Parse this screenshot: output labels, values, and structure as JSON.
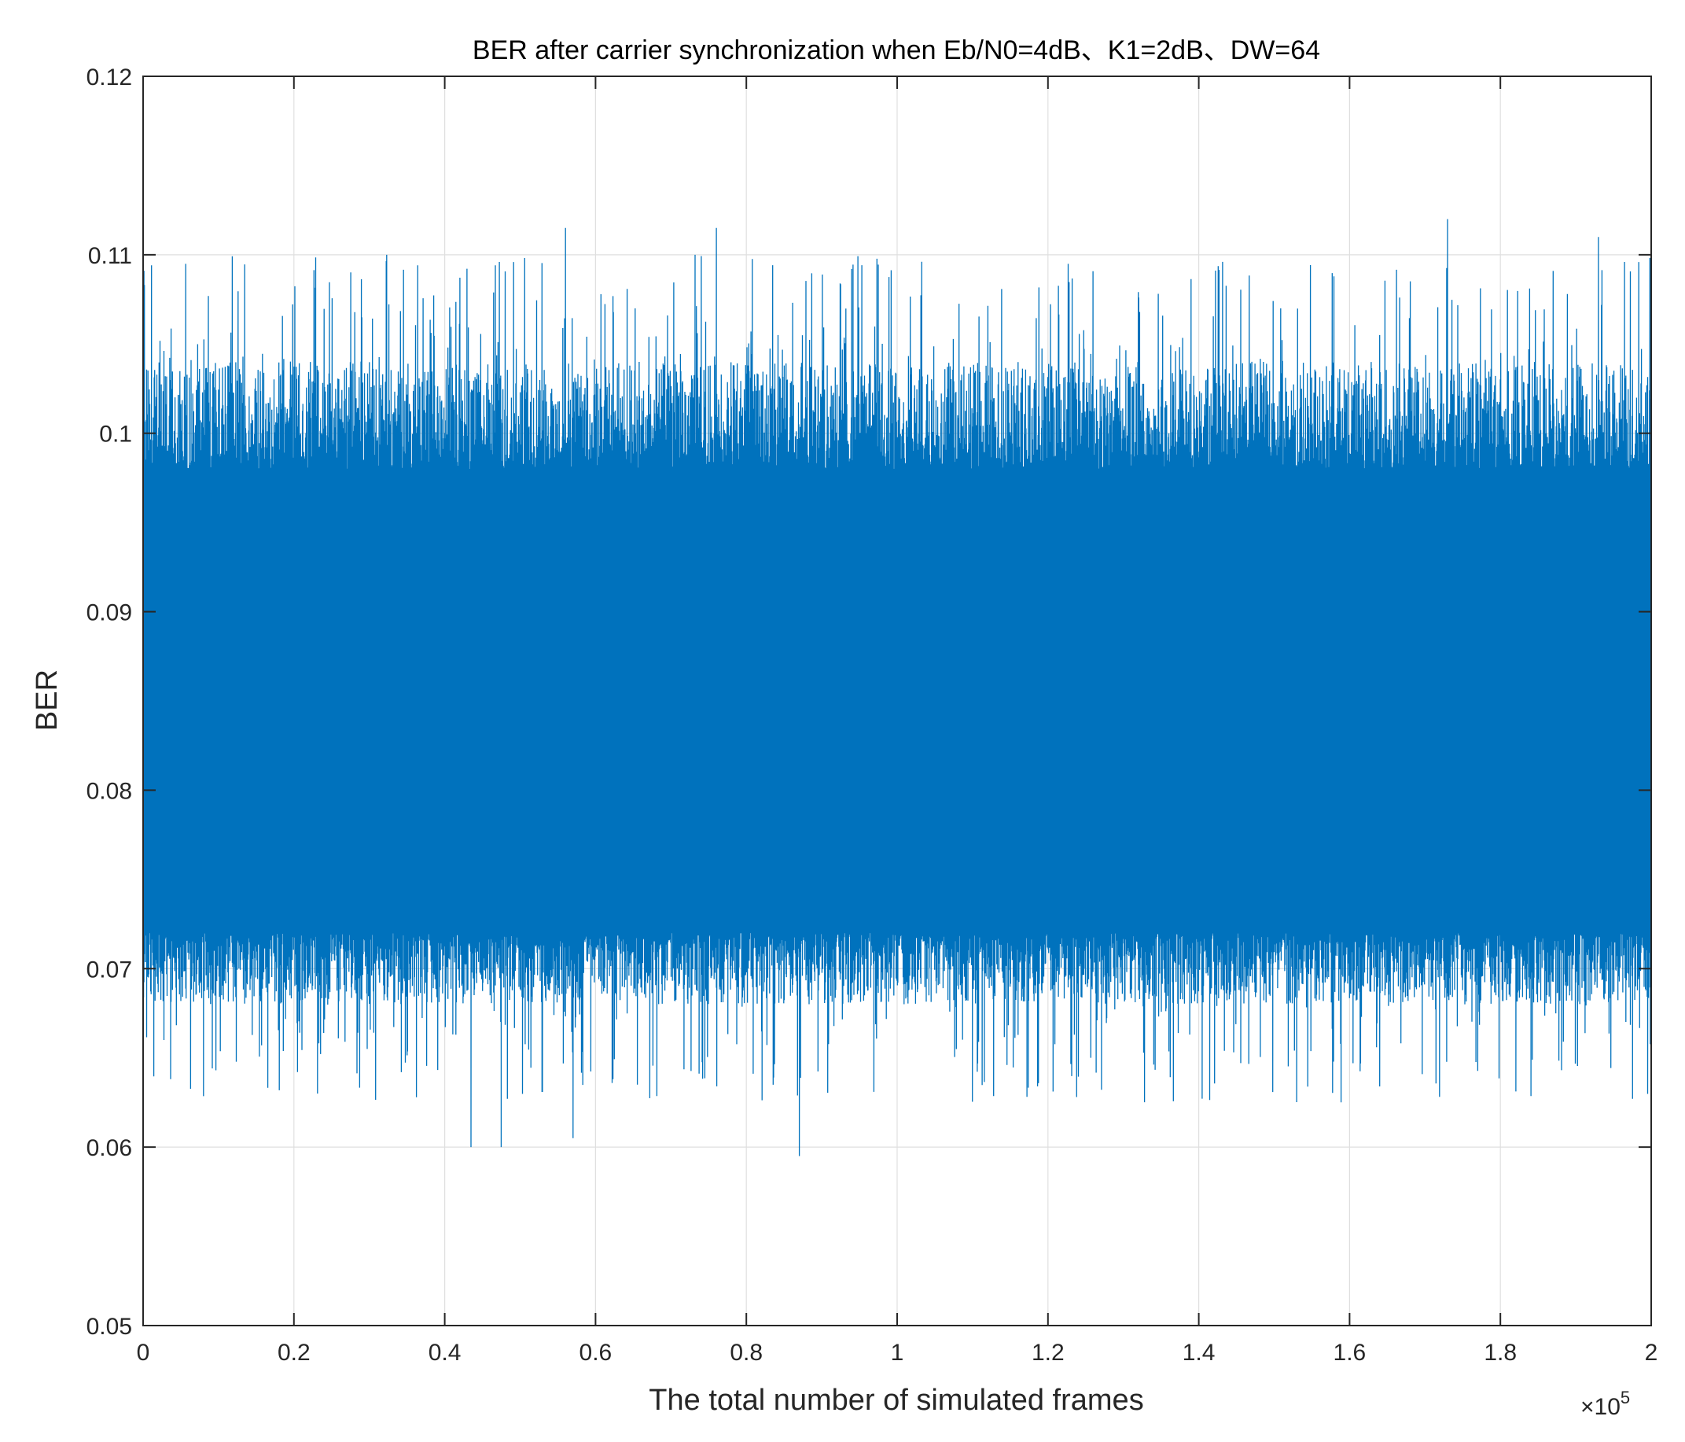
{
  "chart_data": {
    "type": "line",
    "title": "BER after carrier synchronization when Eb/N0=4dB、K1=2dB、DW=64",
    "xlabel": "The total number of simulated frames",
    "ylabel": "BER",
    "x_exponent_label": "×10",
    "x_exponent_power": "5",
    "xlim": [
      0,
      200000
    ],
    "ylim": [
      0.05,
      0.12
    ],
    "x_tick_labels": [
      "0",
      "0.2",
      "0.4",
      "0.6",
      "0.8",
      "1",
      "1.2",
      "1.4",
      "1.6",
      "1.8",
      "2"
    ],
    "y_tick_labels": [
      "0.05",
      "0.06",
      "0.07",
      "0.08",
      "0.09",
      "0.1",
      "0.11",
      "0.12"
    ],
    "grid": true,
    "series": [
      {
        "color": "#0072BD",
        "x_range": [
          1,
          200000
        ],
        "band_core": [
          0.072,
          0.098
        ],
        "typical_high": 0.104,
        "typical_low": 0.068,
        "max_peak": 0.112,
        "min_dip": 0.0595,
        "notable_points": [
          {
            "x": 56000,
            "y": 0.1115
          },
          {
            "x": 76000,
            "y": 0.1115
          },
          {
            "x": 173000,
            "y": 0.112
          },
          {
            "x": 193000,
            "y": 0.111
          },
          {
            "x": 87000,
            "y": 0.0595
          },
          {
            "x": 43500,
            "y": 0.06
          },
          {
            "x": 47500,
            "y": 0.06
          },
          {
            "x": 57000,
            "y": 0.0605
          },
          {
            "x": 108000,
            "y": 0.075
          }
        ]
      }
    ]
  }
}
